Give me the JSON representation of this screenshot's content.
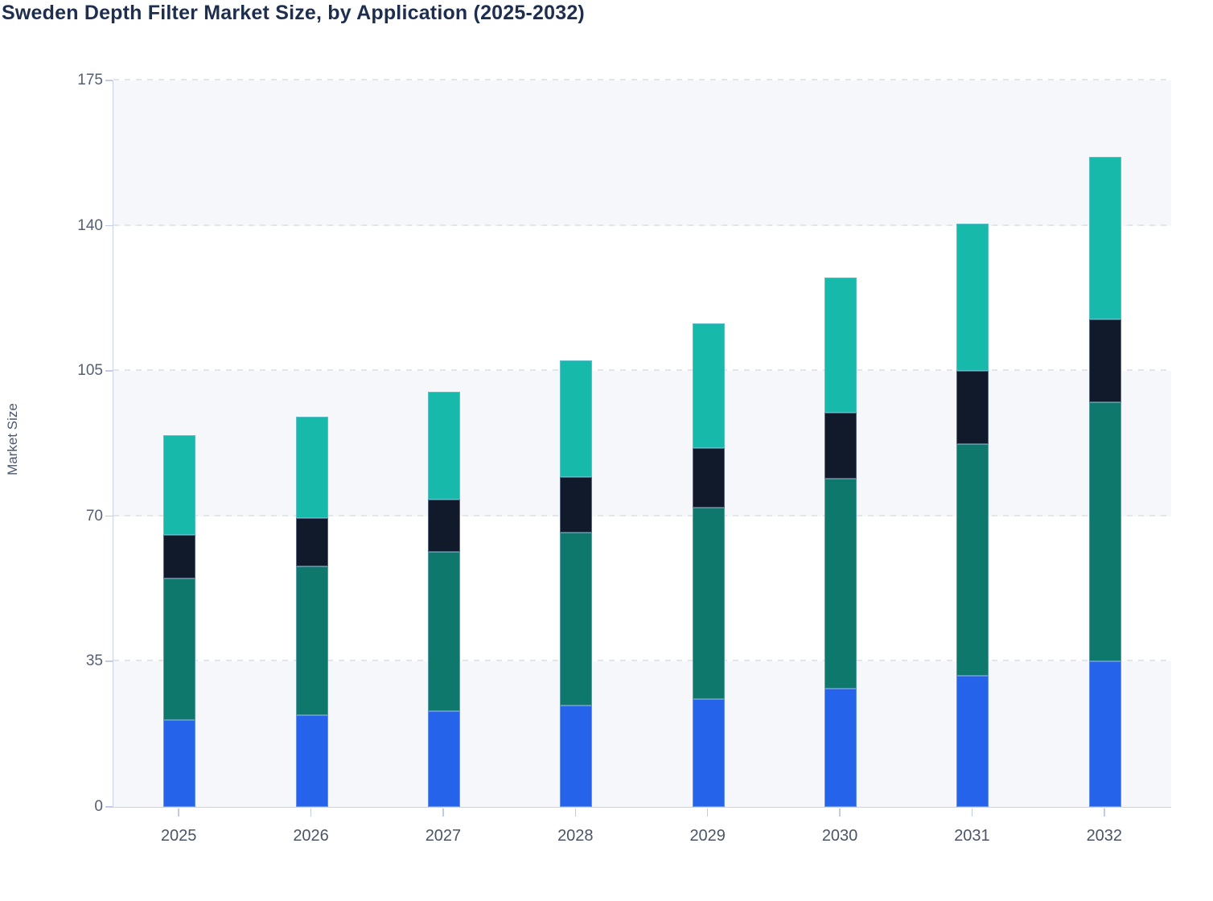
{
  "page": {
    "title": "Sweden Depth Filter Market Size, by Application (2025-2032)"
  },
  "chart_data": {
    "type": "bar",
    "variant": "stacked-vertical",
    "title": "Sweden Depth Filter Market Size, by Application (2025-2032)",
    "xlabel": "",
    "ylabel": "Market Size",
    "categories": [
      "2025",
      "2026",
      "2027",
      "2028",
      "2029",
      "2030",
      "2031",
      "2032"
    ],
    "yticks": [
      0,
      35,
      70,
      105,
      140,
      175
    ],
    "ylim": [
      0,
      175
    ],
    "grid": "horizontal-dashed",
    "legend": "none",
    "stack_order_bottom_to_top": [
      "blue-segment",
      "dark-green-segment",
      "navy-segment",
      "teal-segment"
    ],
    "series": [
      {
        "name": "blue-segment",
        "color": "#2563eb",
        "values": [
          21.0,
          22.0,
          23.0,
          24.5,
          26.0,
          28.5,
          31.5,
          35.0
        ]
      },
      {
        "name": "dark-green-segment",
        "color": "#0e786d",
        "values": [
          34.0,
          36.0,
          38.5,
          41.5,
          46.0,
          50.5,
          56.0,
          62.5
        ]
      },
      {
        "name": "navy-segment",
        "color": "#101a2b",
        "values": [
          10.5,
          11.5,
          12.5,
          13.5,
          14.5,
          16.0,
          17.5,
          20.0
        ]
      },
      {
        "name": "teal-segment",
        "color": "#17b9ab",
        "values": [
          24.0,
          24.5,
          26.0,
          28.0,
          30.0,
          32.5,
          35.5,
          39.0
        ]
      }
    ],
    "totals_by_year": [
      89.5,
      94.0,
      100.0,
      107.5,
      116.5,
      127.5,
      140.5,
      156.5
    ]
  },
  "style": {
    "title_color": "#1e2e4f",
    "axis_line_color": "#c9d2ea",
    "tick_mark_color": "#c2cce8",
    "tick_text_color": "#545f74",
    "gridline_color": "#e2e5ea",
    "band_fill_odd": "#f6f7fa",
    "band_fill_even": "#ffffff",
    "bar_stroke": "rgba(178,199,235,0.45)"
  }
}
